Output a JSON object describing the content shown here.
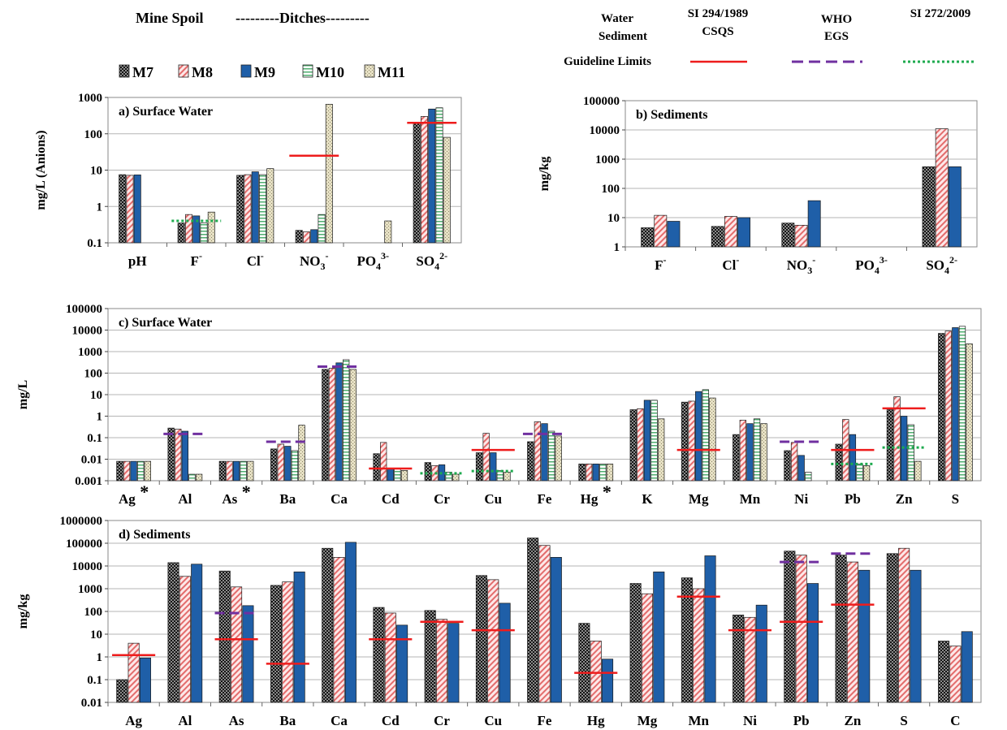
{
  "legend": {
    "group_mine": "Mine Spoil",
    "group_ditches": "---------Ditches---------",
    "series": [
      {
        "name": "M7",
        "pattern": "pat-m7",
        "color": "#3a3a3a"
      },
      {
        "name": "M8",
        "pattern": "pat-m8",
        "color": "#e8a0a0"
      },
      {
        "name": "M9",
        "pattern": "pat-m9",
        "color": "#1f5fa8"
      },
      {
        "name": "M10",
        "pattern": "pat-m10",
        "color": "#6fbf8a"
      },
      {
        "name": "M11",
        "pattern": "pat-m11",
        "color": "#cfc8a6"
      }
    ],
    "water_label": "Water",
    "sediment_label": "Sediment",
    "guideline_label": "Guideline Limits",
    "guidelines": [
      {
        "line1": "SI 294/1989",
        "line2": "CSQS",
        "color": "#ee1c1c",
        "style": "solid"
      },
      {
        "line1": "WHO",
        "line2": "EGS",
        "color": "#7030a0",
        "style": "dashed"
      },
      {
        "line1": "SI 272/2009",
        "line2": "",
        "color": "#1daa4e",
        "style": "dotted"
      }
    ]
  },
  "chart_data": [
    {
      "type": "bar",
      "title": "a) Surface Water",
      "ylabel": "mg/L (Anions)",
      "yscale": "log",
      "ylim": [
        0.1,
        1000
      ],
      "yticks": [
        "0.1",
        "1",
        "10",
        "100",
        "1000"
      ],
      "categories": [
        {
          "base": "pH"
        },
        {
          "base": "F",
          "sup": "-"
        },
        {
          "base": "Cl",
          "sup": "-"
        },
        {
          "base": "NO",
          "sub": "3",
          "sup": "-"
        },
        {
          "base": "PO",
          "sub": "4",
          "sup": "3-"
        },
        {
          "base": "SO",
          "sub": "4",
          "sup": "2-"
        }
      ],
      "series": [
        {
          "name": "M7",
          "values": [
            7.5,
            0.35,
            7.2,
            0.22,
            null,
            200
          ]
        },
        {
          "name": "M8",
          "values": [
            7.2,
            0.6,
            7.5,
            0.2,
            null,
            300
          ]
        },
        {
          "name": "M9",
          "values": [
            7.4,
            0.55,
            9,
            0.23,
            null,
            480
          ]
        },
        {
          "name": "M10",
          "values": [
            null,
            0.35,
            7.5,
            0.6,
            null,
            520
          ]
        },
        {
          "name": "M11",
          "values": [
            null,
            0.7,
            11,
            650,
            0.4,
            80
          ]
        }
      ],
      "guidelines": [
        {
          "series": "SI 272/2009",
          "category": 1,
          "value": 0.4
        },
        {
          "series": "SI 294/1989",
          "category": 3,
          "value": 25
        },
        {
          "series": "SI 294/1989",
          "category": 5,
          "value": 200
        }
      ]
    },
    {
      "type": "bar",
      "title": "b) Sediments",
      "ylabel": "mg/kg",
      "yscale": "log",
      "ylim": [
        1,
        100000
      ],
      "yticks": [
        "1",
        "10",
        "100",
        "1000",
        "10000",
        "100000"
      ],
      "categories": [
        {
          "base": "F",
          "sup": "-"
        },
        {
          "base": "Cl",
          "sup": "-"
        },
        {
          "base": "NO",
          "sub": "3",
          "sup": "-"
        },
        {
          "base": "PO",
          "sub": "4",
          "sup": "3-"
        },
        {
          "base": "SO",
          "sub": "4",
          "sup": "2-"
        }
      ],
      "series": [
        {
          "name": "M7",
          "values": [
            4.5,
            5,
            6.5,
            null,
            550
          ]
        },
        {
          "name": "M8",
          "values": [
            12,
            11,
            5.5,
            null,
            11000
          ]
        },
        {
          "name": "M9",
          "values": [
            7.5,
            10,
            38,
            null,
            550
          ]
        }
      ],
      "guidelines": []
    },
    {
      "type": "bar",
      "title": "c) Surface Water",
      "ylabel": "mg/L",
      "yscale": "log",
      "ylim": [
        0.001,
        100000
      ],
      "yticks": [
        "0.001",
        "0.01",
        "0.1",
        "1",
        "10",
        "100",
        "1000",
        "10000",
        "100000"
      ],
      "categories": [
        {
          "base": "Ag",
          "star": "*"
        },
        {
          "base": "Al"
        },
        {
          "base": "As",
          "star": "*"
        },
        {
          "base": "Ba"
        },
        {
          "base": "Ca"
        },
        {
          "base": "Cd"
        },
        {
          "base": "Cr"
        },
        {
          "base": "Cu"
        },
        {
          "base": "Fe"
        },
        {
          "base": "Hg",
          "star": "*"
        },
        {
          "base": "K"
        },
        {
          "base": "Mg"
        },
        {
          "base": "Mn"
        },
        {
          "base": "Ni"
        },
        {
          "base": "Pb"
        },
        {
          "base": "Zn"
        },
        {
          "base": "S"
        }
      ],
      "series": [
        {
          "name": "M7",
          "values": [
            0.008,
            0.28,
            0.008,
            0.03,
            150,
            0.018,
            0.007,
            0.02,
            0.065,
            0.006,
            2,
            4.5,
            0.14,
            0.025,
            0.05,
            2,
            7000
          ]
        },
        {
          "name": "M8",
          "values": [
            0.008,
            0.25,
            0.008,
            0.05,
            170,
            0.06,
            0.005,
            0.16,
            0.55,
            0.006,
            2.2,
            5,
            0.65,
            0.06,
            0.7,
            8,
            9000
          ]
        },
        {
          "name": "M9",
          "values": [
            0.008,
            0.2,
            0.008,
            0.04,
            300,
            0.0035,
            0.0055,
            0.02,
            0.45,
            0.006,
            5.5,
            14,
            0.45,
            0.015,
            0.14,
            1,
            13000
          ]
        },
        {
          "name": "M10",
          "values": [
            0.008,
            0.002,
            0.008,
            0.025,
            420,
            0.0035,
            0.0025,
            0.003,
            0.2,
            0.006,
            5.5,
            17,
            0.75,
            0.0025,
            0.006,
            0.4,
            15000
          ]
        },
        {
          "name": "M11",
          "values": [
            0.008,
            0.002,
            0.008,
            0.38,
            150,
            0.003,
            0.002,
            0.0025,
            0.12,
            0.006,
            0.75,
            7,
            0.45,
            null,
            0.005,
            0.008,
            2300
          ]
        }
      ],
      "guidelines": [
        {
          "series": "WHO",
          "category": 1,
          "value": 0.15
        },
        {
          "series": "WHO",
          "category": 3,
          "value": 0.065
        },
        {
          "series": "WHO",
          "category": 4,
          "value": 200
        },
        {
          "series": "SI 294/1989",
          "category": 5,
          "value": 0.0037
        },
        {
          "series": "SI 272/2009",
          "category": 6,
          "value": 0.0022
        },
        {
          "series": "SI 294/1989",
          "category": 7,
          "value": 0.027
        },
        {
          "series": "SI 272/2009",
          "category": 7,
          "value": 0.0028
        },
        {
          "series": "WHO",
          "category": 8,
          "value": 0.15
        },
        {
          "series": "SI 294/1989",
          "category": 11,
          "value": 0.027
        },
        {
          "series": "WHO",
          "category": 13,
          "value": 0.065
        },
        {
          "series": "SI 294/1989",
          "category": 14,
          "value": 0.027
        },
        {
          "series": "SI 272/2009",
          "category": 14,
          "value": 0.006
        },
        {
          "series": "SI 294/1989",
          "category": 15,
          "value": 2.3
        },
        {
          "series": "SI 272/2009",
          "category": 15,
          "value": 0.035
        }
      ]
    },
    {
      "type": "bar",
      "title": "d) Sediments",
      "ylabel": "mg/kg",
      "yscale": "log",
      "ylim": [
        0.01,
        1000000
      ],
      "yticks": [
        "0.01",
        "0.1",
        "1",
        "10",
        "100",
        "1000",
        "10000",
        "100000",
        "1000000"
      ],
      "categories": [
        {
          "base": "Ag"
        },
        {
          "base": "Al"
        },
        {
          "base": "As"
        },
        {
          "base": "Ba"
        },
        {
          "base": "Ca"
        },
        {
          "base": "Cd"
        },
        {
          "base": "Cr"
        },
        {
          "base": "Cu"
        },
        {
          "base": "Fe"
        },
        {
          "base": "Hg"
        },
        {
          "base": "Mg"
        },
        {
          "base": "Mn"
        },
        {
          "base": "Ni"
        },
        {
          "base": "Pb"
        },
        {
          "base": "Zn"
        },
        {
          "base": "S"
        },
        {
          "base": "C"
        }
      ],
      "series": [
        {
          "name": "M7",
          "values": [
            0.1,
            14000,
            6000,
            1400,
            60000,
            150,
            110,
            3800,
            170000,
            30,
            1700,
            3000,
            70,
            45000,
            30000,
            35000,
            5
          ]
        },
        {
          "name": "M8",
          "values": [
            4,
            3500,
            1200,
            2000,
            24000,
            85,
            45,
            2500,
            80000,
            5,
            600,
            1000,
            55,
            30000,
            15000,
            60000,
            3
          ]
        },
        {
          "name": "M9",
          "values": [
            0.9,
            12000,
            180,
            5500,
            110000,
            25,
            30,
            230,
            24000,
            0.8,
            5500,
            28000,
            190,
            1700,
            6500,
            6500,
            13
          ]
        }
      ],
      "guidelines": [
        {
          "series": "SI 294/1989",
          "category": 0,
          "value": 1.2
        },
        {
          "series": "SI 294/1989",
          "category": 2,
          "value": 6
        },
        {
          "series": "WHO",
          "category": 2,
          "value": 85
        },
        {
          "series": "SI 294/1989",
          "category": 3,
          "value": 0.5
        },
        {
          "series": "SI 294/1989",
          "category": 5,
          "value": 6
        },
        {
          "series": "SI 294/1989",
          "category": 6,
          "value": 35
        },
        {
          "series": "SI 294/1989",
          "category": 7,
          "value": 15
        },
        {
          "series": "SI 294/1989",
          "category": 9,
          "value": 0.2
        },
        {
          "series": "SI 294/1989",
          "category": 11,
          "value": 450
        },
        {
          "series": "SI 294/1989",
          "category": 12,
          "value": 15
        },
        {
          "series": "SI 294/1989",
          "category": 13,
          "value": 35
        },
        {
          "series": "WHO",
          "category": 13,
          "value": 15000
        },
        {
          "series": "SI 294/1989",
          "category": 14,
          "value": 200
        },
        {
          "series": "WHO",
          "category": 14,
          "value": 35000
        }
      ]
    }
  ]
}
